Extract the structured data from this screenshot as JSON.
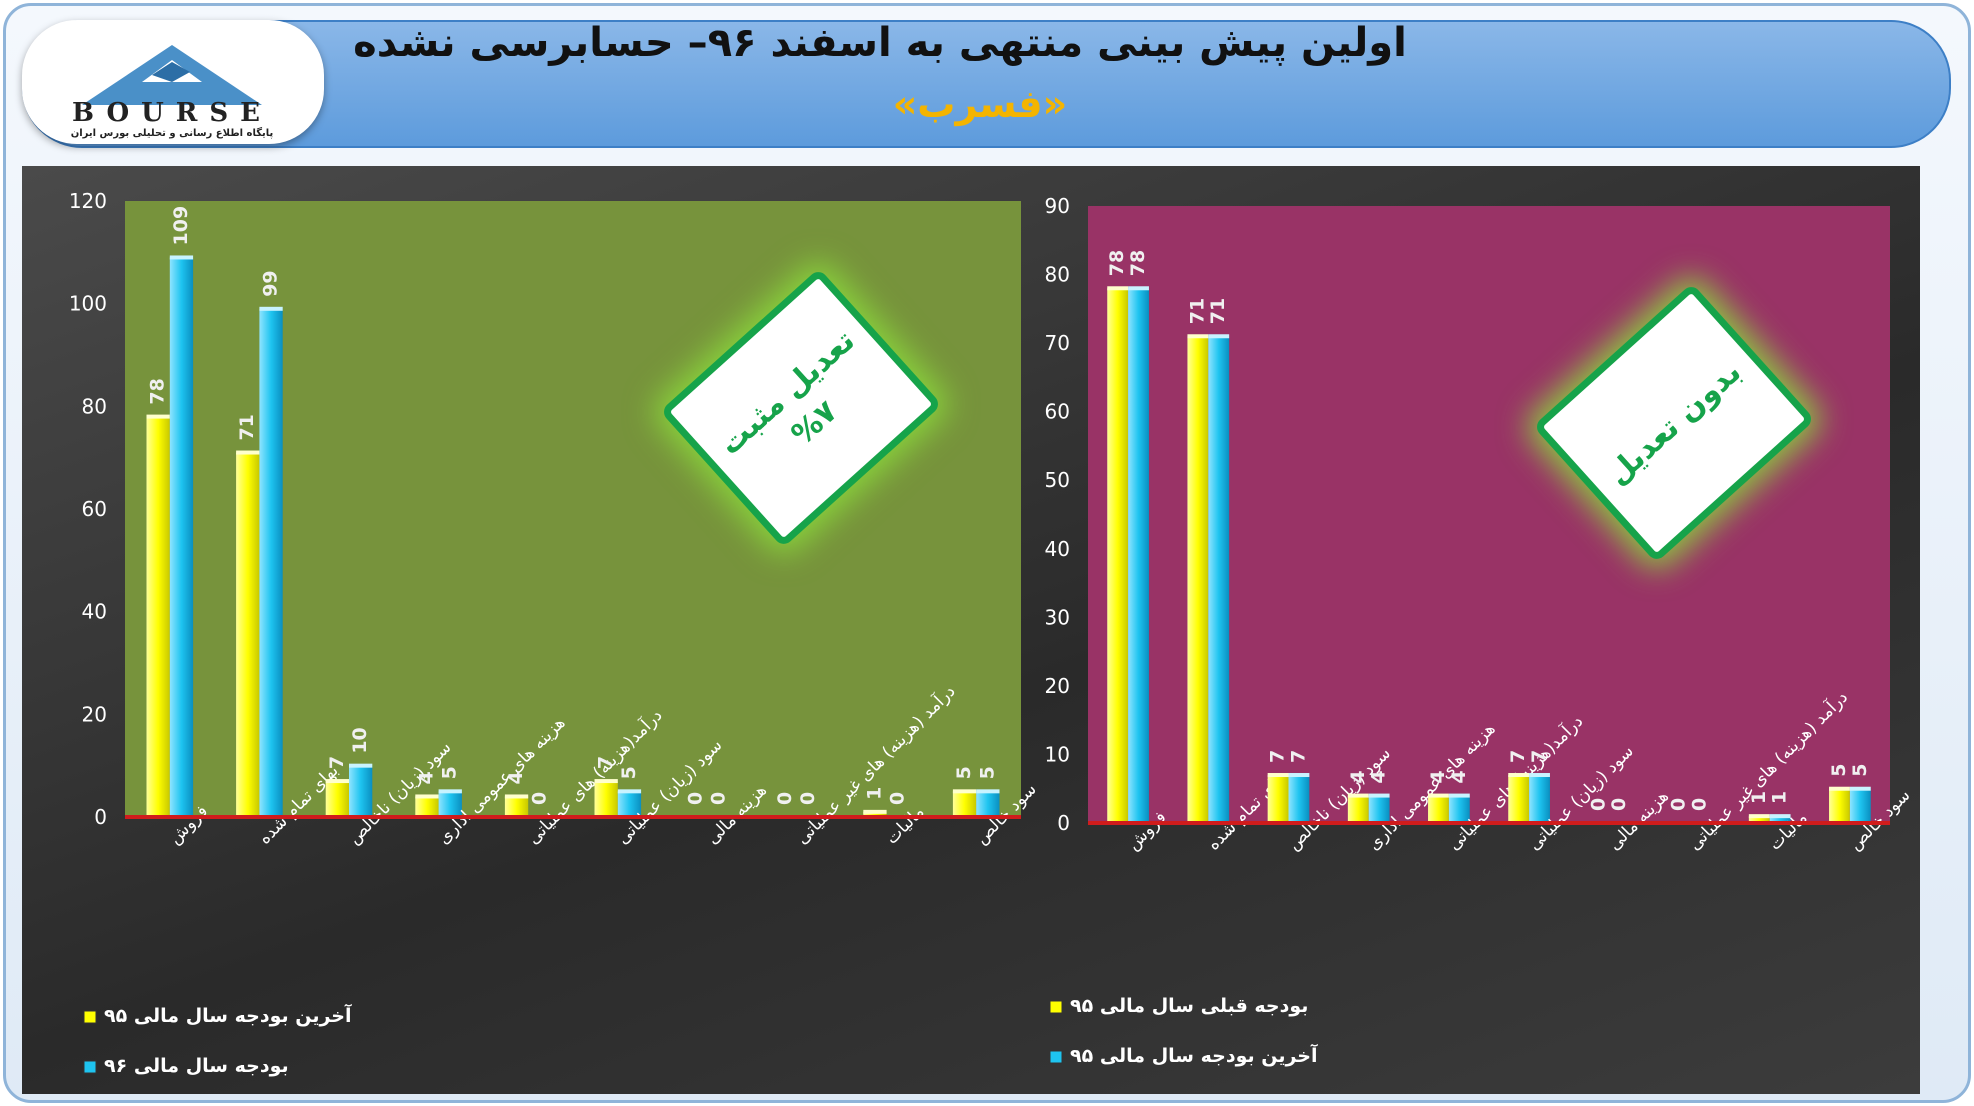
{
  "header": {
    "title": "اولین پیش بینی منتهی به اسفند ۹۶– حسابرسی نشده",
    "subtitle": "«فسرب»"
  },
  "logo": {
    "text": "BOURSE",
    "tagline": "پایگاه اطلاع رسانی و تحلیلی بورس ایران",
    "icon": "24-mountain-logo"
  },
  "colors": {
    "series_yellow": "#ffff00",
    "series_blue": "#1ec4f0",
    "left_plot_bg": "#77933c",
    "right_plot_bg": "#993366",
    "badge_green": "#16a34a",
    "title_orange": "#f4b400"
  },
  "badges": {
    "left": {
      "line1": "تعدیل مثبت",
      "line2": "%۷"
    },
    "right": {
      "line1": "بدون تعدیل"
    }
  },
  "chart_data": [
    {
      "type": "bar",
      "categories": [
        "فروش",
        "بهای تمام شده",
        "سود (زیان) ناخالص",
        "هزینه های عمومی اداری",
        "درآمد(هزینه) های عملیاتی",
        "سود (زیان) عملیاتی",
        "هزینه مالی",
        "درآمد (هزینه) های غیر عملیاتی",
        "مالیات",
        "سود خالص"
      ],
      "series": [
        {
          "name": "آخرین بودجه سال مالی ۹۵",
          "values": [
            78,
            71,
            7,
            4,
            4,
            7,
            0,
            0,
            1,
            5
          ],
          "labels": [
            "78",
            "71",
            "7",
            "4",
            "4",
            "7",
            "0",
            "0",
            "1",
            "5"
          ]
        },
        {
          "name": "بودجه سال مالی ۹۶",
          "values": [
            109,
            99,
            10,
            5,
            0,
            5,
            0,
            0,
            0,
            5
          ],
          "labels": [
            "109",
            "99",
            "10",
            "5",
            "0",
            "5",
            "0",
            "0",
            "0",
            "5"
          ]
        }
      ],
      "ylim": [
        0,
        120
      ],
      "yticks": [
        "0",
        "20",
        "40",
        "60",
        "80",
        "100",
        "120"
      ],
      "grid": false,
      "legend": "bottom-left"
    },
    {
      "type": "bar",
      "categories": [
        "فروش",
        "بهای تمام شده",
        "سود (زیان) ناخالص",
        "هزینه های عمومی اداری",
        "درآمد(هزینه) های عملیاتی",
        "سود (زیان) عملیاتی",
        "هزینه مالی",
        "درآمد (هزینه) های غیر عملیاتی",
        "مالیات",
        "سود خالص"
      ],
      "series": [
        {
          "name": "بودجه قبلی سال مالی ۹۵",
          "values": [
            78,
            71,
            7,
            4,
            4,
            7,
            0,
            0,
            1,
            5
          ],
          "labels": [
            "78",
            "71",
            "7",
            "4",
            "4",
            "7",
            "0",
            "0",
            "1",
            "5"
          ]
        },
        {
          "name": "آخرین بودجه سال مالی ۹۵",
          "values": [
            78,
            71,
            7,
            4,
            4,
            7,
            0,
            0,
            1,
            5
          ],
          "labels": [
            "78",
            "71",
            "7",
            "4",
            "4",
            "7",
            "0",
            "0",
            "1",
            "5"
          ]
        }
      ],
      "ylim": [
        0,
        90
      ],
      "yticks": [
        "0",
        "10",
        "20",
        "30",
        "40",
        "50",
        "60",
        "70",
        "80",
        "90"
      ],
      "grid": false,
      "legend": "bottom-left"
    }
  ]
}
